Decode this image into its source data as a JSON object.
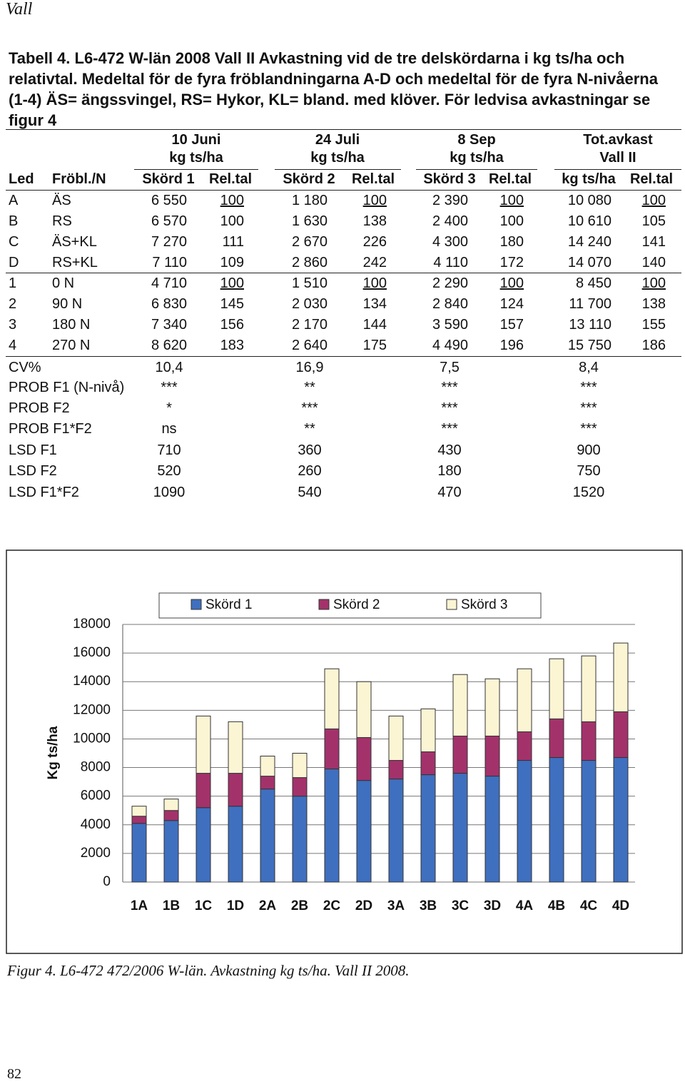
{
  "header": {
    "title": "Vall"
  },
  "caption": "Tabell 4. L6-472 W-län 2008 Vall II Avkastning vid de tre delskördarna i kg ts/ha och relativtal. Medeltal för de fyra fröblandningarna A-D och medeltal för de fyra N-nivåerna (1-4) ÄS= ängssvingel, RS= Hykor, KL= bland. med klöver. För ledvisa avkastningar se figur 4",
  "table": {
    "groups": [
      [
        "10 Juni",
        "kg ts/ha"
      ],
      [
        "24 Juli",
        "kg ts/ha"
      ],
      [
        "8 Sep",
        "kg ts/ha"
      ],
      [
        "Tot.avkast",
        "Vall II"
      ]
    ],
    "columns": [
      "Led",
      "Fröbl./N",
      "Skörd 1",
      "Rel.tal",
      "Skörd 2",
      "Rel.tal",
      "Skörd 3",
      "Rel.tal",
      "kg ts/ha",
      "Rel.tal"
    ],
    "rows": [
      [
        "A",
        "ÄS",
        "6 550",
        "100",
        "1 180",
        "100",
        "2 390",
        "100",
        "10 080",
        "100"
      ],
      [
        "B",
        "RS",
        "6 570",
        "100",
        "1 630",
        "138",
        "2 400",
        "100",
        "10 610",
        "105"
      ],
      [
        "C",
        "ÄS+KL",
        "7 270",
        "111",
        "2 670",
        "226",
        "4 300",
        "180",
        "14 240",
        "141"
      ],
      [
        "D",
        "RS+KL",
        "7 110",
        "109",
        "2 860",
        "242",
        "4 110",
        "172",
        "14 070",
        "140"
      ],
      [
        "1",
        "0 N",
        "4 710",
        "100",
        "1 510",
        "100",
        "2 290",
        "100",
        "8 450",
        "100"
      ],
      [
        "2",
        "90 N",
        "6 830",
        "145",
        "2 030",
        "134",
        "2 840",
        "124",
        "11 700",
        "138"
      ],
      [
        "3",
        "180 N",
        "7 340",
        "156",
        "2 170",
        "144",
        "3 590",
        "157",
        "13 110",
        "155"
      ],
      [
        "4",
        "270 N",
        "8 620",
        "183",
        "2 640",
        "175",
        "4 490",
        "196",
        "15 750",
        "186"
      ]
    ],
    "stats": [
      [
        "CV%",
        "10,4",
        "16,9",
        "7,5",
        "8,4"
      ],
      [
        "PROB F1  (N-nivå)",
        "***",
        "**",
        "***",
        "***"
      ],
      [
        "PROB F2",
        "*",
        "***",
        "***",
        "***"
      ],
      [
        "PROB F1*F2",
        "ns",
        "**",
        "***",
        "***"
      ],
      [
        "LSD F1",
        "710",
        "360",
        "430",
        "900"
      ],
      [
        "LSD F2",
        "520",
        "260",
        "180",
        "750"
      ],
      [
        "LSD F1*F2",
        "1090",
        "540",
        "470",
        "1520"
      ]
    ]
  },
  "chart_data": {
    "type": "stacked-bar",
    "y_label": "Kg ts/ha",
    "categories": [
      "1A",
      "1B",
      "1C",
      "1D",
      "2A",
      "2B",
      "2C",
      "2D",
      "3A",
      "3B",
      "3C",
      "3D",
      "4A",
      "4B",
      "4C",
      "4D"
    ],
    "series": [
      {
        "name": "Skörd 1",
        "color": "#3f6fbf",
        "values": [
          4100,
          4300,
          5200,
          5300,
          6500,
          6000,
          7900,
          7100,
          7200,
          7500,
          7600,
          7400,
          8500,
          8700,
          8500,
          8700
        ]
      },
      {
        "name": "Skörd 2",
        "color": "#a3326b",
        "values": [
          500,
          700,
          2400,
          2300,
          900,
          1300,
          2800,
          3000,
          1300,
          1600,
          2600,
          2800,
          2000,
          2700,
          2700,
          3200
        ]
      },
      {
        "name": "Skörd 3",
        "color": "#fbf5d4",
        "values": [
          700,
          800,
          4000,
          3600,
          1400,
          1700,
          4200,
          3900,
          3100,
          3000,
          4300,
          4000,
          4400,
          4200,
          4600,
          4800
        ]
      }
    ],
    "ylim": [
      0,
      18000
    ],
    "yticks": [
      0,
      2000,
      4000,
      6000,
      8000,
      10000,
      12000,
      14000,
      16000,
      18000
    ],
    "grid": true
  },
  "figure_caption": "Figur 4.  L6-472 472/2006 W-län. Avkastning kg ts/ha. Vall II 2008.",
  "page_number": "82"
}
